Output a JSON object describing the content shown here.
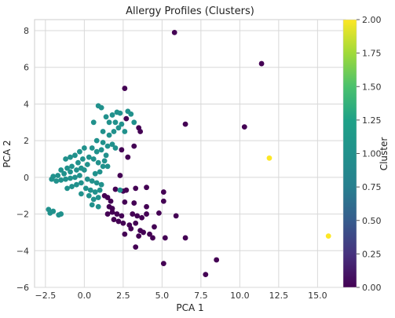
{
  "chart_data": {
    "type": "scatter",
    "title": "Allergy Profiles (Clusters)",
    "xlabel": "PCA 1",
    "ylabel": "PCA 2",
    "xlim": [
      -3.2,
      16.8
    ],
    "ylim": [
      -6,
      8.6
    ],
    "xticks": [
      -2.5,
      0.0,
      2.5,
      5.0,
      7.5,
      10.0,
      12.5,
      15.0
    ],
    "xtick_labels": [
      "−2.5",
      "0.0",
      "2.5",
      "5.0",
      "7.5",
      "10.0",
      "12.5",
      "15.0"
    ],
    "yticks": [
      -6,
      -4,
      -2,
      0,
      2,
      4,
      6,
      8
    ],
    "ytick_labels": [
      "−6",
      "−4",
      "−2",
      "0",
      "2",
      "4",
      "6",
      "8"
    ],
    "grid": true,
    "colorbar": {
      "label": "Cluster",
      "range": [
        0,
        2
      ],
      "ticks": [
        0.0,
        0.25,
        0.5,
        0.75,
        1.0,
        1.25,
        1.5,
        1.75,
        2.0
      ],
      "tick_labels": [
        "0.00",
        "0.25",
        "0.50",
        "0.75",
        "1.00",
        "1.25",
        "1.50",
        "1.75",
        "2.00"
      ],
      "colormap": "viridis"
    },
    "series": [
      {
        "cluster": 0,
        "color": "#440154",
        "points": [
          [
            5.8,
            7.9
          ],
          [
            11.4,
            6.2
          ],
          [
            2.6,
            4.85
          ],
          [
            2.7,
            3.2
          ],
          [
            3.5,
            2.7
          ],
          [
            3.6,
            2.5
          ],
          [
            6.5,
            2.9
          ],
          [
            10.3,
            2.75
          ],
          [
            3.2,
            1.7
          ],
          [
            2.4,
            1.5
          ],
          [
            2.8,
            1.1
          ],
          [
            2.3,
            0.1
          ],
          [
            2.0,
            -0.65
          ],
          [
            2.5,
            -0.75
          ],
          [
            2.7,
            -0.7
          ],
          [
            3.3,
            -0.6
          ],
          [
            4.0,
            -0.55
          ],
          [
            5.1,
            -0.8
          ],
          [
            1.3,
            -1.0
          ],
          [
            1.5,
            -1.1
          ],
          [
            1.7,
            -1.3
          ],
          [
            1.6,
            -1.6
          ],
          [
            1.8,
            -1.7
          ],
          [
            2.6,
            -1.35
          ],
          [
            3.2,
            -1.4
          ],
          [
            4.0,
            -1.6
          ],
          [
            1.5,
            -2.0
          ],
          [
            1.8,
            -1.9
          ],
          [
            2.1,
            -2.0
          ],
          [
            2.4,
            -2.1
          ],
          [
            3.1,
            -2.0
          ],
          [
            3.4,
            -2.1
          ],
          [
            3.7,
            -2.2
          ],
          [
            4.0,
            -2.0
          ],
          [
            4.8,
            -1.95
          ],
          [
            5.1,
            -1.3
          ],
          [
            5.9,
            -2.1
          ],
          [
            1.9,
            -2.3
          ],
          [
            2.2,
            -2.4
          ],
          [
            2.5,
            -2.5
          ],
          [
            2.9,
            -2.6
          ],
          [
            3.3,
            -2.5
          ],
          [
            2.6,
            -3.1
          ],
          [
            3.0,
            -2.8
          ],
          [
            3.6,
            -2.9
          ],
          [
            3.8,
            -3.0
          ],
          [
            4.5,
            -2.7
          ],
          [
            4.2,
            -3.1
          ],
          [
            3.5,
            -3.2
          ],
          [
            4.4,
            -3.3
          ],
          [
            5.2,
            -3.3
          ],
          [
            6.5,
            -3.3
          ],
          [
            3.3,
            -3.8
          ],
          [
            5.1,
            -4.7
          ],
          [
            8.5,
            -4.5
          ],
          [
            7.8,
            -5.3
          ]
        ]
      },
      {
        "cluster": 1,
        "color": "#21918c",
        "points": [
          [
            0.9,
            3.9
          ],
          [
            1.1,
            3.8
          ],
          [
            0.6,
            3.0
          ],
          [
            1.4,
            3.3
          ],
          [
            1.8,
            3.4
          ],
          [
            2.1,
            3.55
          ],
          [
            2.3,
            3.5
          ],
          [
            2.8,
            3.6
          ],
          [
            3.0,
            3.45
          ],
          [
            1.6,
            3.0
          ],
          [
            2.0,
            3.0
          ],
          [
            2.4,
            2.9
          ],
          [
            2.2,
            2.7
          ],
          [
            2.6,
            2.5
          ],
          [
            3.2,
            3.0
          ],
          [
            1.2,
            2.5
          ],
          [
            1.6,
            2.3
          ],
          [
            1.9,
            2.5
          ],
          [
            0.8,
            2.0
          ],
          [
            1.2,
            1.9
          ],
          [
            1.5,
            1.7
          ],
          [
            1.8,
            1.8
          ],
          [
            2.0,
            1.6
          ],
          [
            0.5,
            1.6
          ],
          [
            0.8,
            1.4
          ],
          [
            1.1,
            1.5
          ],
          [
            0.0,
            1.6
          ],
          [
            -0.3,
            1.4
          ],
          [
            -0.6,
            1.2
          ],
          [
            -0.9,
            1.1
          ],
          [
            -1.2,
            1.0
          ],
          [
            0.3,
            1.1
          ],
          [
            0.6,
            1.0
          ],
          [
            0.9,
            0.8
          ],
          [
            1.2,
            0.6
          ],
          [
            1.5,
            0.6
          ],
          [
            1.0,
            0.3
          ],
          [
            0.7,
            0.2
          ],
          [
            -0.1,
            1.0
          ],
          [
            -0.4,
            0.8
          ],
          [
            -0.8,
            0.6
          ],
          [
            -1.1,
            0.5
          ],
          [
            -1.5,
            0.4
          ],
          [
            -0.2,
            0.5
          ],
          [
            -0.5,
            0.4
          ],
          [
            -0.9,
            0.3
          ],
          [
            -1.3,
            0.2
          ],
          [
            -1.7,
            0.1
          ],
          [
            -2.0,
            0.05
          ],
          [
            -0.3,
            0.1
          ],
          [
            -0.6,
            0.0
          ],
          [
            -0.9,
            -0.05
          ],
          [
            -1.2,
            -0.1
          ],
          [
            -1.5,
            -0.15
          ],
          [
            -1.8,
            -0.2
          ],
          [
            -2.1,
            -0.1
          ],
          [
            0.2,
            -0.1
          ],
          [
            0.5,
            -0.2
          ],
          [
            0.8,
            -0.3
          ],
          [
            1.1,
            -0.4
          ],
          [
            -0.2,
            -0.3
          ],
          [
            -0.5,
            -0.4
          ],
          [
            -0.8,
            -0.5
          ],
          [
            -1.1,
            -0.6
          ],
          [
            0.1,
            -0.6
          ],
          [
            0.4,
            -0.7
          ],
          [
            0.7,
            -0.8
          ],
          [
            1.0,
            -0.7
          ],
          [
            0.3,
            -1.0
          ],
          [
            0.6,
            -1.2
          ],
          [
            0.9,
            -1.1
          ],
          [
            0.5,
            -1.5
          ],
          [
            -0.2,
            -0.9
          ],
          [
            -2.3,
            -1.75
          ],
          [
            -2.2,
            -1.95
          ],
          [
            -2.0,
            -1.85
          ],
          [
            -1.5,
            -2.0
          ],
          [
            -1.65,
            -2.05
          ],
          [
            0.0,
            0.4
          ],
          [
            0.2,
            0.7
          ],
          [
            1.4,
            1.2
          ],
          [
            1.3,
            0.9
          ],
          [
            2.3,
            -0.7
          ],
          [
            0.9,
            -1.6
          ]
        ]
      },
      {
        "cluster": 2,
        "color": "#fde725",
        "points": [
          [
            11.9,
            1.05
          ],
          [
            15.7,
            -3.2
          ]
        ]
      }
    ]
  }
}
